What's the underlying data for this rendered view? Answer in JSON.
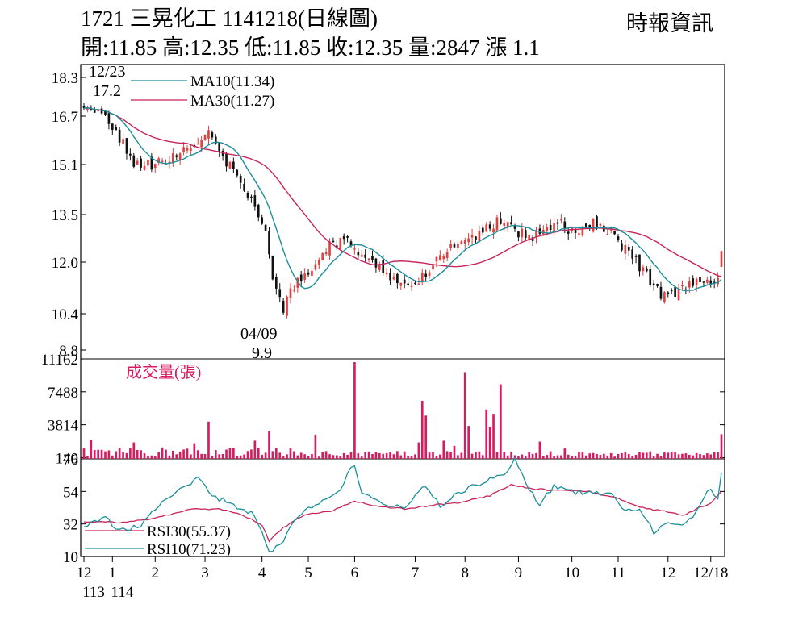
{
  "header": {
    "title": "1721 三晃化工 1141218(日線圖)",
    "stats": "開:11.85 高:12.35 低:11.85 收:12.35 量:2847 漲 1.1",
    "source": "時報資訊"
  },
  "chart_data": [
    {
      "type": "candlestick",
      "y_ticks": [
        "18.3",
        "16.7",
        "15.1",
        "13.5",
        "12.0",
        "10.4",
        "8.8"
      ],
      "y_tick_values": [
        18.3,
        16.7,
        15.1,
        13.5,
        12.0,
        10.4,
        8.8
      ],
      "ylim": [
        8.8,
        18.3
      ],
      "legend": [
        {
          "name": "MA10(11.34)",
          "color": "#1a8f9b"
        },
        {
          "name": "MA30(11.27)",
          "color": "#c8245a"
        }
      ],
      "annotations": [
        {
          "text": "12/23",
          "value": "17.2",
          "kind": "high"
        },
        {
          "text": "04/09",
          "value": "9.9",
          "kind": "low"
        }
      ],
      "price_path": [
        [
          0,
          17.2
        ],
        [
          8,
          16.4
        ],
        [
          14,
          15.2
        ],
        [
          19,
          15.1
        ],
        [
          23,
          15.2
        ],
        [
          27,
          15.5
        ],
        [
          31,
          15.6
        ],
        [
          35,
          16.1
        ],
        [
          39,
          15.3
        ],
        [
          44,
          14.6
        ],
        [
          48,
          13.8
        ],
        [
          51,
          13.1
        ],
        [
          53,
          11.6
        ],
        [
          55,
          10.9
        ],
        [
          56,
          10.5
        ],
        [
          58,
          11.1
        ],
        [
          61,
          11.5
        ],
        [
          64,
          11.9
        ],
        [
          67,
          12.4
        ],
        [
          71,
          12.6
        ],
        [
          74,
          12.7
        ],
        [
          78,
          12.2
        ],
        [
          82,
          11.9
        ],
        [
          86,
          11.6
        ],
        [
          90,
          11.4
        ],
        [
          94,
          11.4
        ],
        [
          98,
          11.9
        ],
        [
          102,
          12.4
        ],
        [
          106,
          12.5
        ],
        [
          110,
          12.8
        ],
        [
          114,
          13.1
        ],
        [
          118,
          13.4
        ],
        [
          122,
          12.9
        ],
        [
          126,
          12.8
        ],
        [
          130,
          13.1
        ],
        [
          134,
          13.2
        ],
        [
          138,
          12.9
        ],
        [
          141,
          13.2
        ],
        [
          145,
          13.2
        ],
        [
          149,
          12.8
        ],
        [
          152,
          12.4
        ],
        [
          155,
          12.0
        ],
        [
          158,
          11.6
        ],
        [
          161,
          11.1
        ],
        [
          164,
          10.9
        ],
        [
          167,
          11.2
        ],
        [
          170,
          11.3
        ],
        [
          173,
          11.5
        ],
        [
          176,
          11.3
        ],
        [
          178,
          11.4
        ],
        [
          179,
          12.1
        ]
      ],
      "last_bar": {
        "open": 11.85,
        "high": 12.35,
        "low": 11.85,
        "close": 12.35
      }
    },
    {
      "type": "bar",
      "title": "成交量(張)",
      "y_ticks": [
        "11162",
        "7488",
        "3814",
        "140"
      ],
      "y_tick_values": [
        11162,
        7488,
        3814,
        140
      ],
      "ylim": [
        0,
        11162
      ],
      "spikes": [
        [
          0,
          1200
        ],
        [
          2,
          2200
        ],
        [
          14,
          1900
        ],
        [
          31,
          1800
        ],
        [
          35,
          4300
        ],
        [
          48,
          2100
        ],
        [
          52,
          3200
        ],
        [
          65,
          2800
        ],
        [
          76,
          11162
        ],
        [
          94,
          1900
        ],
        [
          95,
          6700
        ],
        [
          96,
          5000
        ],
        [
          101,
          2100
        ],
        [
          104,
          1500
        ],
        [
          107,
          10000
        ],
        [
          108,
          3800
        ],
        [
          113,
          5700
        ],
        [
          114,
          3700
        ],
        [
          115,
          5200
        ],
        [
          117,
          8600
        ],
        [
          128,
          2000
        ],
        [
          135,
          1200
        ],
        [
          179,
          2847
        ]
      ]
    },
    {
      "type": "line",
      "y_ticks": [
        "76",
        "54",
        "32",
        "10"
      ],
      "y_tick_values": [
        76,
        54,
        32,
        10
      ],
      "ylim": [
        10,
        76
      ],
      "series": [
        {
          "name": "RSI30(55.37)",
          "color": "#c8245a",
          "path": [
            [
              0,
              32
            ],
            [
              10,
              32
            ],
            [
              20,
              35
            ],
            [
              30,
              42
            ],
            [
              38,
              42
            ],
            [
              45,
              37
            ],
            [
              50,
              30
            ],
            [
              52,
              18
            ],
            [
              56,
              28
            ],
            [
              62,
              38
            ],
            [
              70,
              41
            ],
            [
              76,
              48
            ],
            [
              82,
              44
            ],
            [
              90,
              42
            ],
            [
              98,
              45
            ],
            [
              106,
              47
            ],
            [
              114,
              52
            ],
            [
              120,
              60
            ],
            [
              126,
              57
            ],
            [
              134,
              56
            ],
            [
              142,
              55
            ],
            [
              150,
              50
            ],
            [
              158,
              42
            ],
            [
              164,
              40
            ],
            [
              168,
              37
            ],
            [
              172,
              42
            ],
            [
              176,
              46
            ],
            [
              179,
              55.37
            ]
          ]
        },
        {
          "name": "RSI10(71.23)",
          "color": "#1a8f9b",
          "path": [
            [
              0,
              30
            ],
            [
              6,
              35
            ],
            [
              10,
              26
            ],
            [
              16,
              30
            ],
            [
              22,
              48
            ],
            [
              28,
              58
            ],
            [
              32,
              65
            ],
            [
              36,
              52
            ],
            [
              42,
              45
            ],
            [
              48,
              38
            ],
            [
              52,
              10
            ],
            [
              55,
              14
            ],
            [
              58,
              30
            ],
            [
              62,
              40
            ],
            [
              68,
              50
            ],
            [
              72,
              58
            ],
            [
              76,
              76
            ],
            [
              78,
              55
            ],
            [
              84,
              46
            ],
            [
              90,
              44
            ],
            [
              96,
              60
            ],
            [
              100,
              45
            ],
            [
              106,
              55
            ],
            [
              112,
              62
            ],
            [
              118,
              68
            ],
            [
              121,
              80
            ],
            [
              124,
              62
            ],
            [
              128,
              45
            ],
            [
              132,
              60
            ],
            [
              136,
              55
            ],
            [
              142,
              54
            ],
            [
              148,
              52
            ],
            [
              152,
              42
            ],
            [
              156,
              40
            ],
            [
              160,
              25
            ],
            [
              164,
              30
            ],
            [
              168,
              28
            ],
            [
              172,
              40
            ],
            [
              176,
              58
            ],
            [
              178,
              48
            ],
            [
              179,
              71.23
            ]
          ]
        }
      ]
    }
  ],
  "x_axis": {
    "ticks": [
      {
        "label": "12",
        "sub": "113"
      },
      {
        "label": "1",
        "sub": "114"
      },
      {
        "label": "2",
        "sub": ""
      },
      {
        "label": "3",
        "sub": ""
      },
      {
        "label": "4",
        "sub": ""
      },
      {
        "label": "5",
        "sub": ""
      },
      {
        "label": "6",
        "sub": ""
      },
      {
        "label": "7",
        "sub": ""
      },
      {
        "label": "8",
        "sub": ""
      },
      {
        "label": "9",
        "sub": ""
      },
      {
        "label": "10",
        "sub": ""
      },
      {
        "label": "11",
        "sub": ""
      },
      {
        "label": "12",
        "sub": ""
      },
      {
        "label": "12/18",
        "sub": ""
      }
    ],
    "tick_day_index": [
      0,
      8,
      20,
      34,
      50,
      63,
      76,
      93,
      107,
      122,
      137,
      150,
      164,
      176
    ],
    "days": 180
  },
  "colors": {
    "up": "#e04040",
    "down": "#111111",
    "volume": "#d81b60",
    "frame": "#000000",
    "grid": "#bbbbbb"
  }
}
